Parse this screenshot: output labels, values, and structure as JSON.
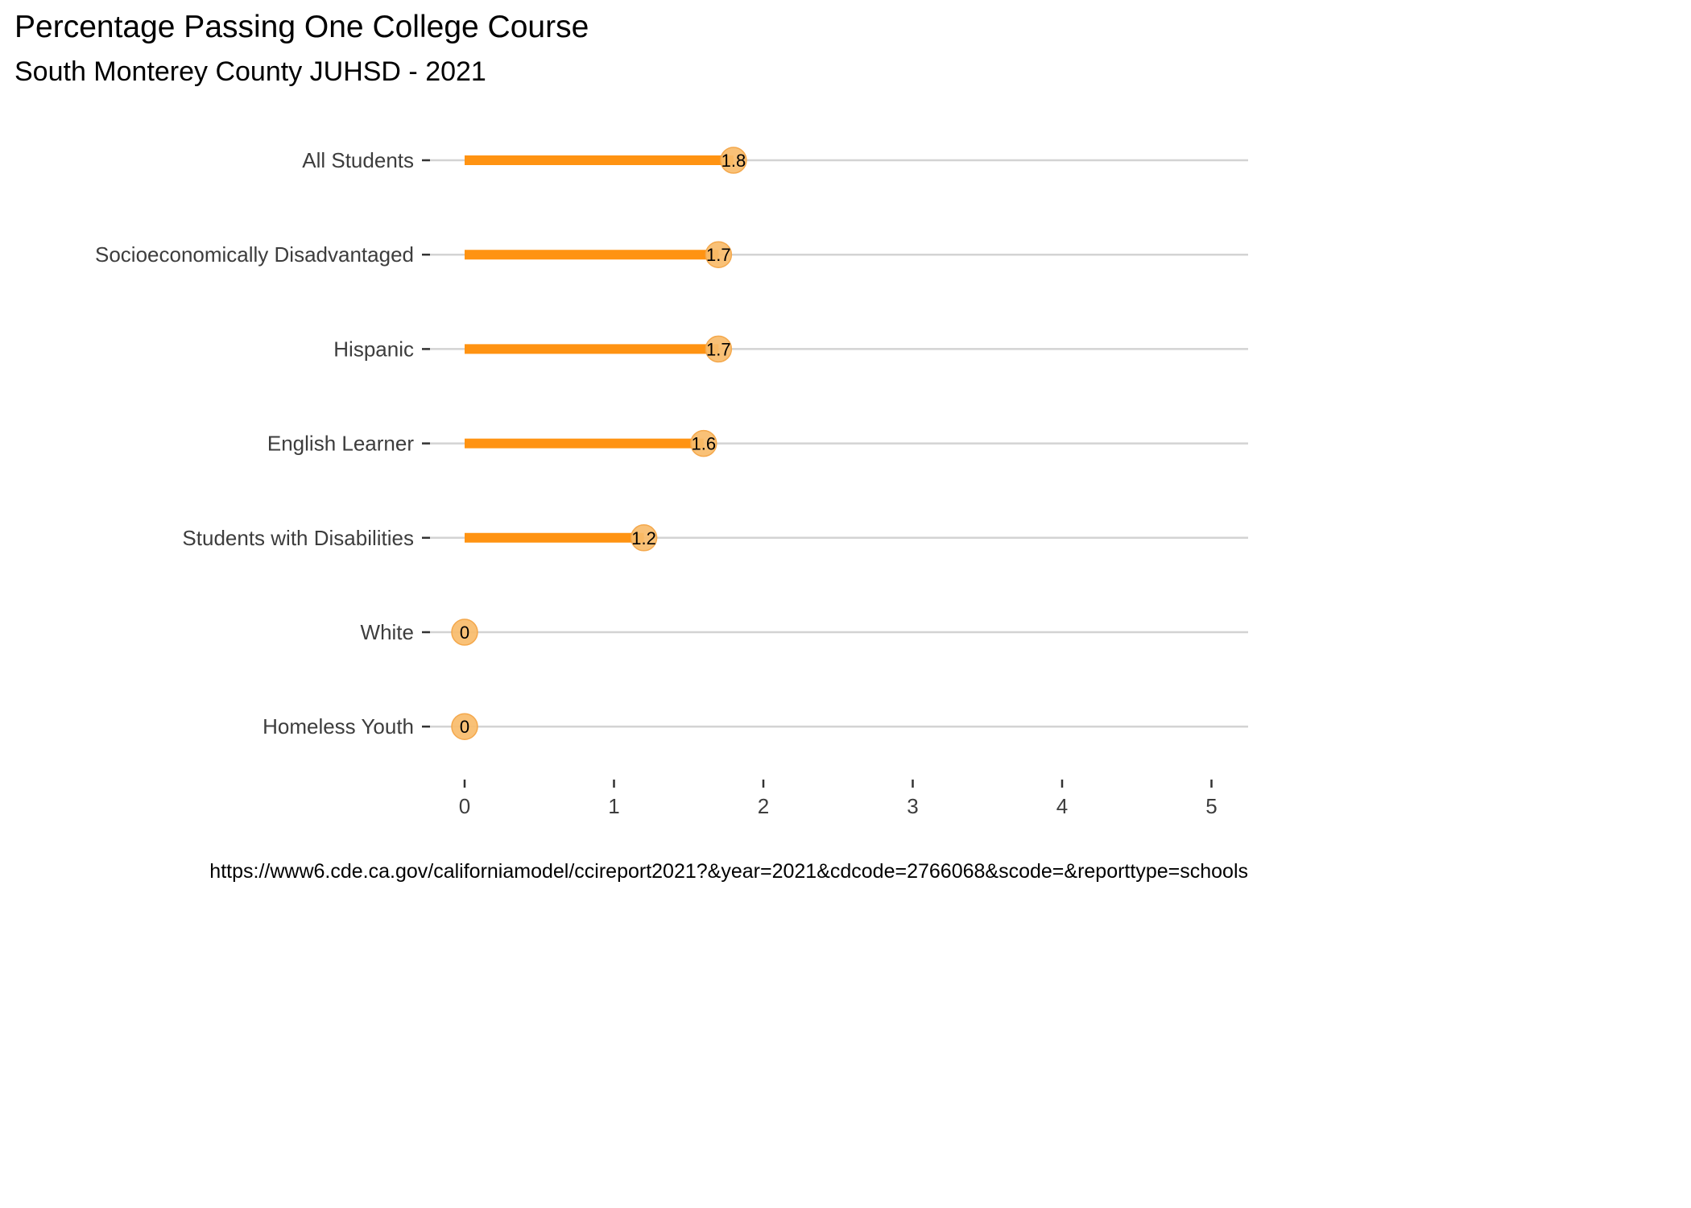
{
  "chart_data": {
    "type": "lollipop",
    "title": "Percentage Passing One College Course",
    "subtitle": "South Monterey County JUHSD - 2021",
    "caption": "https://www6.cde.ca.gov/californiamodel/ccireport2021?&year=2021&cdcode=2766068&scode=&reporttype=schools",
    "xlabel": "",
    "ylabel": "",
    "xlim": [
      0,
      5
    ],
    "x_ticks": [
      0,
      1,
      2,
      3,
      4,
      5
    ],
    "x_tick_labels": [
      "0",
      "1",
      "2",
      "3",
      "4",
      "5"
    ],
    "categories": [
      "All Students",
      "Socioeconomically Disadvantaged",
      "Hispanic",
      "English Learner",
      "Students with Disabilities",
      "White",
      "Homeless Youth"
    ],
    "values": [
      1.8,
      1.7,
      1.7,
      1.6,
      1.2,
      0,
      0
    ],
    "value_labels": [
      "1.8",
      "1.7",
      "1.7",
      "1.6",
      "1.2",
      "0",
      "0"
    ],
    "grid": "horizontal",
    "legend": "none",
    "colors": {
      "segment": "#FF9312",
      "point": "#F9BC6B",
      "point_stroke": "#F4A84C",
      "gridline": "#d3d3d3",
      "tick": "#333333",
      "tick_label": "#3d3d3d"
    }
  }
}
